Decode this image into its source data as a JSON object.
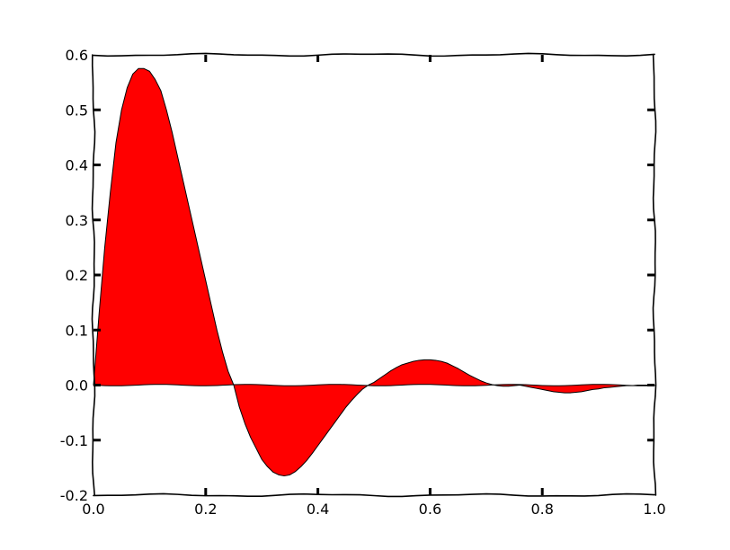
{
  "chart_data": {
    "type": "area",
    "title": "",
    "xlabel": "",
    "ylabel": "",
    "xlim": [
      0.0,
      1.0
    ],
    "ylim": [
      -0.2,
      0.6
    ],
    "x_ticks": [
      0.0,
      0.2,
      0.4,
      0.6,
      0.8,
      1.0
    ],
    "y_ticks": [
      -0.2,
      -0.1,
      0.0,
      0.1,
      0.2,
      0.3,
      0.4,
      0.5,
      0.6
    ],
    "x_tick_labels": [
      "0.0",
      "0.2",
      "0.4",
      "0.6",
      "0.8",
      "1.0"
    ],
    "y_tick_labels": [
      "-0.2",
      "-0.1",
      "0.0",
      "0.1",
      "0.2",
      "0.3",
      "0.4",
      "0.5",
      "0.6"
    ],
    "grid": false,
    "legend": "none",
    "style": "xkcd",
    "fill_color": "#ff0000",
    "line_color": "#000000",
    "series": [
      {
        "x": [
          0.0,
          0.01,
          0.02,
          0.03,
          0.04,
          0.05,
          0.06,
          0.07,
          0.08,
          0.09,
          0.1,
          0.11,
          0.12,
          0.13,
          0.14,
          0.15,
          0.16,
          0.17,
          0.18,
          0.19,
          0.2,
          0.21,
          0.22,
          0.23,
          0.24,
          0.25,
          0.26,
          0.27,
          0.28,
          0.29,
          0.3,
          0.31,
          0.32,
          0.33,
          0.34,
          0.35,
          0.36,
          0.37,
          0.38,
          0.39,
          0.4,
          0.41,
          0.42,
          0.43,
          0.44,
          0.45,
          0.46,
          0.47,
          0.48,
          0.49,
          0.5,
          0.51,
          0.52,
          0.53,
          0.54,
          0.55,
          0.56,
          0.57,
          0.58,
          0.59,
          0.6,
          0.61,
          0.62,
          0.63,
          0.64,
          0.65,
          0.66,
          0.67,
          0.68,
          0.69,
          0.7,
          0.71,
          0.72,
          0.73,
          0.74,
          0.75,
          0.76,
          0.77,
          0.78,
          0.79,
          0.8,
          0.81,
          0.82,
          0.83,
          0.84,
          0.85,
          0.86,
          0.87,
          0.88,
          0.89,
          0.9,
          0.91,
          0.92,
          0.93,
          0.94,
          0.95,
          0.96,
          0.97,
          0.98,
          0.99,
          1.0
        ],
        "y": [
          0.0,
          0.13,
          0.25,
          0.35,
          0.44,
          0.5,
          0.54,
          0.565,
          0.575,
          0.575,
          0.57,
          0.555,
          0.535,
          0.5,
          0.46,
          0.415,
          0.37,
          0.325,
          0.28,
          0.235,
          0.19,
          0.145,
          0.1,
          0.06,
          0.025,
          0.0,
          -0.04,
          -0.07,
          -0.095,
          -0.115,
          -0.135,
          -0.148,
          -0.158,
          -0.163,
          -0.165,
          -0.163,
          -0.157,
          -0.148,
          -0.137,
          -0.124,
          -0.11,
          -0.096,
          -0.082,
          -0.068,
          -0.054,
          -0.04,
          -0.028,
          -0.017,
          -0.007,
          0.0,
          0.005,
          0.012,
          0.019,
          0.026,
          0.032,
          0.037,
          0.04,
          0.043,
          0.045,
          0.046,
          0.046,
          0.045,
          0.043,
          0.04,
          0.035,
          0.03,
          0.024,
          0.018,
          0.013,
          0.008,
          0.004,
          0.001,
          -0.001,
          -0.002,
          -0.002,
          -0.001,
          0.0,
          -0.002,
          -0.004,
          -0.006,
          -0.008,
          -0.01,
          -0.012,
          -0.013,
          -0.014,
          -0.014,
          -0.013,
          -0.012,
          -0.01,
          -0.008,
          -0.007,
          -0.005,
          -0.004,
          -0.003,
          -0.002,
          -0.001,
          -0.001,
          0.0,
          0.0,
          0.0,
          0.0
        ]
      }
    ]
  }
}
